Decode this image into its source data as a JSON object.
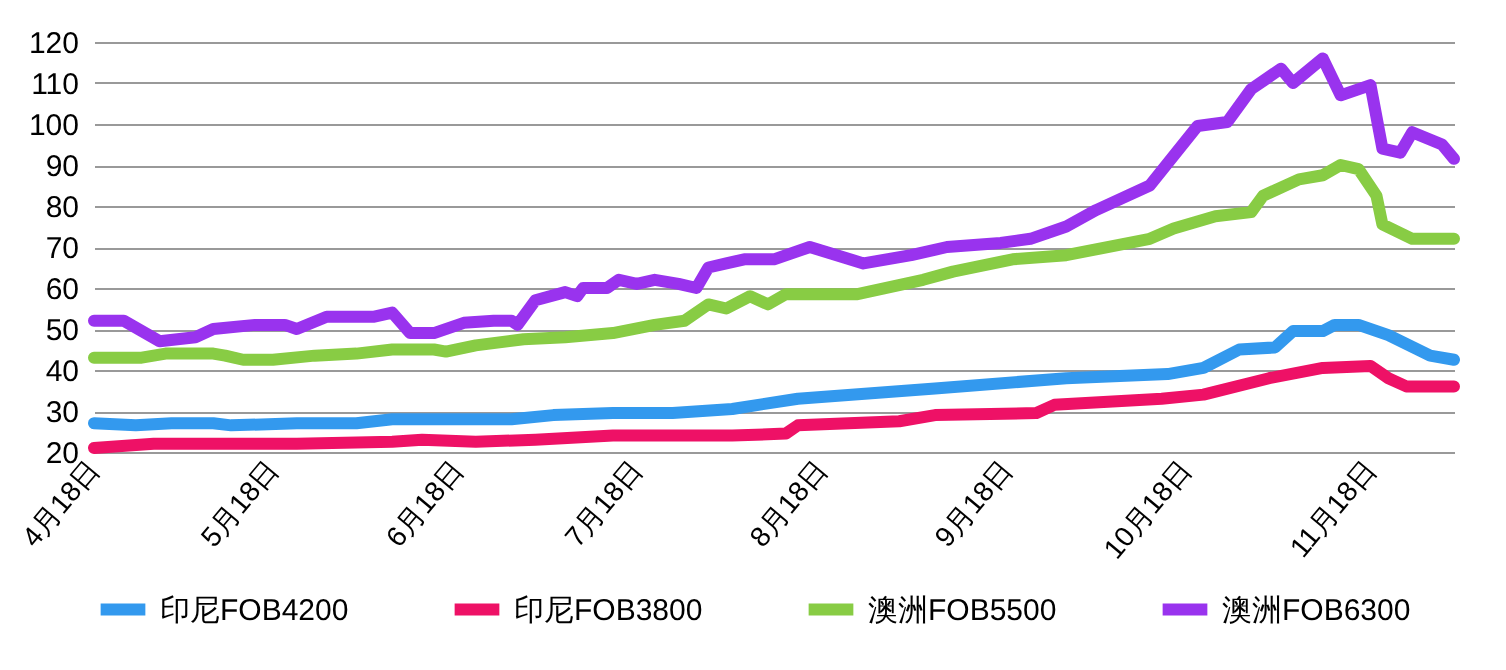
{
  "chart_data": {
    "type": "line",
    "xlim": [
      "--04-18",
      "--12-02"
    ],
    "ylim": [
      20,
      120
    ],
    "yticks": [
      20,
      30,
      40,
      50,
      60,
      70,
      80,
      90,
      100,
      110,
      120
    ],
    "xticks": [
      {
        "value": "--04-18",
        "label": "4月18日"
      },
      {
        "value": "--05-18",
        "label": "5月18日"
      },
      {
        "value": "--06-18",
        "label": "6月18日"
      },
      {
        "value": "--07-18",
        "label": "7月18日"
      },
      {
        "value": "--08-18",
        "label": "8月18日"
      },
      {
        "value": "--09-18",
        "label": "9月18日"
      },
      {
        "value": "--10-18",
        "label": "10月18日"
      },
      {
        "value": "--11-18",
        "label": "11月18日"
      }
    ],
    "grid": "y",
    "legend": "bottom",
    "marker": "none",
    "line_style": "solid",
    "series": [
      {
        "name": "印尼FOB4200",
        "color": "#3399ee",
        "x": [
          "--04-18",
          "--04-25",
          "--05-01",
          "--05-08",
          "--05-11",
          "--05-22",
          "--06-01",
          "--06-07",
          "--06-27",
          "--07-04",
          "--07-14",
          "--07-24",
          "--08-03",
          "--08-14",
          "--09-06",
          "--09-28",
          "--10-15",
          "--10-21",
          "--10-27",
          "--11-02",
          "--11-05",
          "--11-10",
          "--11-12",
          "--11-16",
          "--11-21",
          "--11-28",
          "--12-02"
        ],
        "values": [
          27,
          26.5,
          27,
          27,
          26.5,
          27,
          27,
          28,
          28,
          29,
          29.5,
          29.5,
          30.5,
          33,
          35.5,
          38,
          39,
          40.5,
          45,
          45.5,
          49.5,
          49.5,
          51,
          51,
          48.5,
          43.5,
          42.5
        ]
      },
      {
        "name": "印尼FOB3800",
        "color": "#ee1166",
        "x": [
          "--04-18",
          "--04-28",
          "--05-22",
          "--06-07",
          "--06-12",
          "--06-21",
          "--07-01",
          "--07-14",
          "--08-03",
          "--08-12",
          "--08-14",
          "--08-31",
          "--09-06",
          "--09-23",
          "--09-26",
          "--10-14",
          "--10-21",
          "--11-01",
          "--11-10",
          "--11-18",
          "--11-21",
          "--11-24",
          "--12-02"
        ],
        "values": [
          21,
          22,
          22,
          22.5,
          23,
          22.5,
          23,
          24,
          24,
          24.5,
          26.5,
          27.5,
          29,
          29.5,
          31.5,
          33,
          34,
          38,
          40.5,
          41,
          38,
          36,
          36
        ]
      },
      {
        "name": "澳洲FOB5500",
        "color": "#88cc44",
        "x": [
          "--04-18",
          "--04-26",
          "--04-30",
          "--05-08",
          "--05-10",
          "--05-13",
          "--05-18",
          "--05-25",
          "--06-01",
          "--06-07",
          "--06-14",
          "--06-16",
          "--06-21",
          "--06-29",
          "--07-06",
          "--07-14",
          "--07-21",
          "--07-26",
          "--07-30",
          "--08-02",
          "--08-06",
          "--08-09",
          "--08-12",
          "--08-24",
          "--09-04",
          "--09-09",
          "--09-19",
          "--09-28",
          "--10-12",
          "--10-16",
          "--10-23",
          "--10-29",
          "--10-31",
          "--11-06",
          "--11-10",
          "--11-13",
          "--11-16",
          "--11-19",
          "--11-20",
          "--11-25",
          "--12-02"
        ],
        "values": [
          43,
          43,
          44,
          44,
          43.5,
          42.5,
          42.5,
          43.5,
          44,
          45,
          45,
          44.5,
          46,
          47.5,
          48,
          49,
          51,
          52,
          56,
          55,
          58,
          56,
          58.5,
          58.5,
          62,
          64,
          67,
          68,
          72,
          74.5,
          77.5,
          78.5,
          82.5,
          86.5,
          87.5,
          90,
          89,
          82.5,
          75.5,
          72,
          72
        ]
      },
      {
        "name": "澳洲FOB6300",
        "color": "#9933ee",
        "x": [
          "--04-18",
          "--04-23",
          "--04-29",
          "--05-05",
          "--05-08",
          "--05-15",
          "--05-20",
          "--05-22",
          "--05-27",
          "--06-04",
          "--06-07",
          "--06-10",
          "--06-14",
          "--06-19",
          "--06-24",
          "--06-27",
          "--06-28",
          "--07-01",
          "--07-06",
          "--07-08",
          "--07-09",
          "--07-13",
          "--07-15",
          "--07-18",
          "--07-21",
          "--07-25",
          "--07-28",
          "--07-30",
          "--08-02",
          "--08-05",
          "--08-10",
          "--08-16",
          "--08-25",
          "--09-02",
          "--09-08",
          "--09-17",
          "--09-22",
          "--09-28",
          "--10-03",
          "--10-12",
          "--10-20",
          "--10-25",
          "--10-29",
          "--11-03",
          "--11-05",
          "--11-10",
          "--11-13",
          "--11-18",
          "--11-20",
          "--11-23",
          "--11-25",
          "--11-30",
          "--12-02"
        ],
        "values": [
          52,
          52,
          47,
          48,
          50,
          51,
          51,
          50,
          53,
          53,
          54,
          49,
          49,
          51.5,
          52,
          52,
          51,
          57,
          59,
          58,
          60,
          60,
          62,
          61,
          62,
          61,
          60,
          65,
          66,
          67,
          67,
          70,
          66,
          68,
          70,
          71,
          72,
          75,
          79,
          85,
          99.5,
          100.5,
          108.5,
          113.5,
          110,
          116,
          107,
          109.5,
          94,
          93,
          98,
          95,
          91.5
        ]
      }
    ]
  }
}
